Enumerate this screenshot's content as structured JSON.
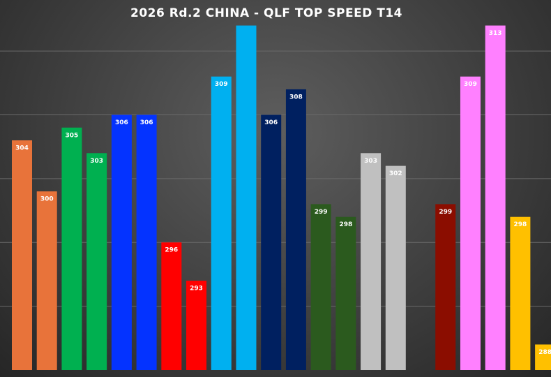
{
  "chart_data": {
    "type": "bar",
    "title": "2026 Rd.2 CHINA  - QLF TOP SPEED T14",
    "categories": [
      null,
      null,
      null,
      null,
      null,
      null,
      null,
      null,
      null,
      null,
      null,
      null,
      null,
      null,
      null,
      null,
      null,
      null,
      null,
      null,
      null,
      null
    ],
    "values": [
      304,
      300,
      305,
      303,
      306,
      306,
      296,
      293,
      309,
      313,
      306,
      308,
      299,
      298,
      303,
      302,
      null,
      299,
      309,
      313,
      298,
      288
    ],
    "value_labels": [
      "304",
      "300",
      "305",
      "303",
      "306",
      "306",
      "296",
      "293",
      "309",
      null,
      "306",
      "308",
      "299",
      "298",
      "303",
      "302",
      null,
      "299",
      "309",
      "313",
      "298",
      "288"
    ],
    "colors": [
      "#e8733a",
      "#e8733a",
      "#00b050",
      "#00b050",
      "#0433ff",
      "#0433ff",
      "#ff0000",
      "#ff0000",
      "#00b0f0",
      "#00b0f0",
      "#002060",
      "#002060",
      "#2b5a1e",
      "#2b5a1e",
      "#c0c0c0",
      "#c0c0c0",
      null,
      "#8b0d00",
      "#ff80ff",
      "#ff80ff",
      "#ffc000",
      "#ffc000"
    ],
    "ylim": [
      286,
      315
    ],
    "yticks": [
      291,
      296,
      301,
      306,
      311
    ],
    "grid": true
  }
}
